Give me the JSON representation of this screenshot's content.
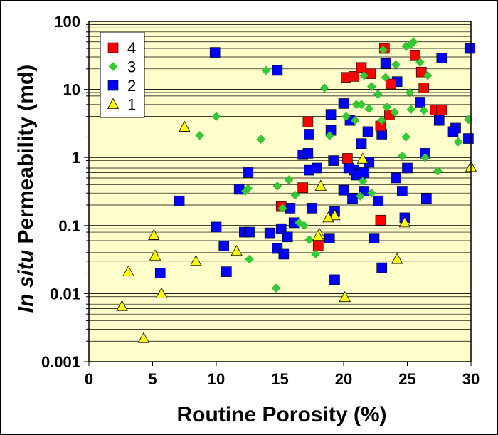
{
  "chart_data": {
    "type": "scatter",
    "title": "",
    "xlabel": "Routine Porosity (%)",
    "ylabel_prefix": "In situ",
    "ylabel_suffix": " Permeability (md)",
    "xlim": [
      0,
      30
    ],
    "ylim": [
      0.001,
      100
    ],
    "yscale": "log",
    "grid": true,
    "legend_position": "top-left",
    "x_ticks": [
      "0",
      "5",
      "10",
      "15",
      "20",
      "25",
      "30"
    ],
    "y_ticks": [
      "0.001",
      "0.01",
      "0.1",
      "1",
      "10",
      "100"
    ],
    "colors": {
      "plot_bg": "#FFFFCC",
      "series_4": "#FF0000",
      "series_3": "#33CC33",
      "series_2": "#0000FF",
      "series_1": "#FFFF00"
    },
    "series": [
      {
        "name": "4",
        "marker": "square",
        "color": "#FF0000",
        "points": [
          [
            20.2,
            15
          ],
          [
            20.8,
            15.5
          ],
          [
            21.4,
            21
          ],
          [
            22.1,
            17
          ],
          [
            23.2,
            40
          ],
          [
            23.6,
            4.2
          ],
          [
            23.7,
            12
          ],
          [
            25.6,
            32
          ],
          [
            26.1,
            18
          ],
          [
            26.3,
            10.5
          ],
          [
            27.2,
            5
          ],
          [
            27.7,
            5
          ],
          [
            17.2,
            3.3
          ],
          [
            16.8,
            0.36
          ],
          [
            15.1,
            0.19
          ],
          [
            18.0,
            0.05
          ],
          [
            20.3,
            0.97
          ],
          [
            22.9,
            2.9
          ],
          [
            22.9,
            0.12
          ]
        ]
      },
      {
        "name": "3",
        "marker": "diamond",
        "color": "#33CC33",
        "points": [
          [
            25.5,
            50
          ],
          [
            24.9,
            43
          ],
          [
            25.3,
            46
          ],
          [
            23.1,
            38
          ],
          [
            24.1,
            23
          ],
          [
            26.0,
            25
          ],
          [
            26.6,
            16
          ],
          [
            21.6,
            16
          ],
          [
            23.3,
            15
          ],
          [
            18.5,
            10.5
          ],
          [
            22.2,
            11
          ],
          [
            22.7,
            8.5
          ],
          [
            25.2,
            9
          ],
          [
            21.0,
            6
          ],
          [
            21.4,
            6
          ],
          [
            22.0,
            5.2
          ],
          [
            23.4,
            5.5
          ],
          [
            24.0,
            4.6
          ],
          [
            25.3,
            5.1
          ],
          [
            26.3,
            4.9
          ],
          [
            20.2,
            4
          ],
          [
            20.9,
            3.5
          ],
          [
            23.0,
            3.5
          ],
          [
            29.8,
            3.6
          ],
          [
            13.9,
            19
          ],
          [
            10.0,
            4
          ],
          [
            8.7,
            2.1
          ],
          [
            13.5,
            1.85
          ],
          [
            18.9,
            2.1
          ],
          [
            24.9,
            2.0
          ],
          [
            29.0,
            1.7
          ],
          [
            24.6,
            1.05
          ],
          [
            26.4,
            1.0
          ],
          [
            27.4,
            0.63
          ],
          [
            15.7,
            0.47
          ],
          [
            14.8,
            0.38
          ],
          [
            12.3,
            0.32
          ],
          [
            12.5,
            0.35
          ],
          [
            16.2,
            0.28
          ],
          [
            21.3,
            0.27
          ],
          [
            22.2,
            0.3
          ],
          [
            15.2,
            0.18
          ],
          [
            16.5,
            0.11
          ],
          [
            17.8,
            0.038
          ],
          [
            17.3,
            0.062
          ],
          [
            12.6,
            0.032
          ],
          [
            14.7,
            0.012
          ],
          [
            21.5,
            0.45
          ],
          [
            16.9,
            0.1
          ]
        ]
      },
      {
        "name": "2",
        "marker": "square",
        "color": "#0000FF",
        "points": [
          [
            29.9,
            40
          ],
          [
            9.9,
            35
          ],
          [
            27.7,
            29
          ],
          [
            23.3,
            24
          ],
          [
            14.8,
            19
          ],
          [
            24.2,
            13
          ],
          [
            20.0,
            6.2
          ],
          [
            26.0,
            6.5
          ],
          [
            19.0,
            4.3
          ],
          [
            20.5,
            3.5
          ],
          [
            27.5,
            3.5
          ],
          [
            28.8,
            2.7
          ],
          [
            28.6,
            2.4
          ],
          [
            21.9,
            2.4
          ],
          [
            23.0,
            2.2
          ],
          [
            29.8,
            1.9
          ],
          [
            17.3,
            2.2
          ],
          [
            19.0,
            2.5
          ],
          [
            21.4,
            1.6
          ],
          [
            16.8,
            1.1
          ],
          [
            17.2,
            1.15
          ],
          [
            26.4,
            1.15
          ],
          [
            19.2,
            0.9
          ],
          [
            22.0,
            0.85
          ],
          [
            17.9,
            0.7
          ],
          [
            17.3,
            0.65
          ],
          [
            20.8,
            0.65
          ],
          [
            21.3,
            0.58
          ],
          [
            20.4,
            0.7
          ],
          [
            21.0,
            0.55
          ],
          [
            21.6,
            0.6
          ],
          [
            25.0,
            0.7
          ],
          [
            24.1,
            0.5
          ],
          [
            12.5,
            0.6
          ],
          [
            11.8,
            0.34
          ],
          [
            15.8,
            0.18
          ],
          [
            17.5,
            0.18
          ],
          [
            19.3,
            0.16
          ],
          [
            20.0,
            0.33
          ],
          [
            21.6,
            0.32
          ],
          [
            20.7,
            0.25
          ],
          [
            22.7,
            0.23
          ],
          [
            24.6,
            0.32
          ],
          [
            26.5,
            0.25
          ],
          [
            24.8,
            0.13
          ],
          [
            10.0,
            0.095
          ],
          [
            12.2,
            0.08
          ],
          [
            12.6,
            0.08
          ],
          [
            14.2,
            0.078
          ],
          [
            15.1,
            0.09
          ],
          [
            15.6,
            0.068
          ],
          [
            18.9,
            0.065
          ],
          [
            22.4,
            0.065
          ],
          [
            14.8,
            0.046
          ],
          [
            15.3,
            0.038
          ],
          [
            10.6,
            0.05
          ],
          [
            10.8,
            0.021
          ],
          [
            7.1,
            0.23
          ],
          [
            5.6,
            0.02
          ],
          [
            19.3,
            0.016
          ],
          [
            23.0,
            0.024
          ],
          [
            16.1,
            0.11
          ]
        ]
      },
      {
        "name": "1",
        "marker": "triangle",
        "color": "#FFFF00",
        "points": [
          [
            7.5,
            2.8
          ],
          [
            30.0,
            0.72
          ],
          [
            21.5,
            0.95
          ],
          [
            18.2,
            0.38
          ],
          [
            24.8,
            0.11
          ],
          [
            19.3,
            0.14
          ],
          [
            18.8,
            0.13
          ],
          [
            18.1,
            0.075
          ],
          [
            18.0,
            0.07
          ],
          [
            5.1,
            0.072
          ],
          [
            5.2,
            0.036
          ],
          [
            11.6,
            0.042
          ],
          [
            8.4,
            0.03
          ],
          [
            3.1,
            0.021
          ],
          [
            2.6,
            0.0065
          ],
          [
            5.7,
            0.01
          ],
          [
            4.3,
            0.0022
          ],
          [
            24.2,
            0.032
          ],
          [
            20.1,
            0.0088
          ]
        ]
      }
    ]
  }
}
